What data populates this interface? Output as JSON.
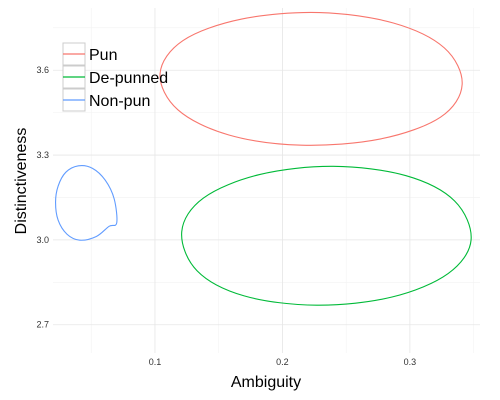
{
  "chart_data": {
    "type": "scatter",
    "title": "",
    "xlabel": "Ambiguity",
    "ylabel": "Distinctiveness",
    "xlim": [
      0.02,
      0.355
    ],
    "ylim": [
      2.6,
      3.82
    ],
    "x_ticks": [
      {
        "value": 0.1,
        "label": "0.1"
      },
      {
        "value": 0.2,
        "label": "0.2"
      },
      {
        "value": 0.3,
        "label": "0.3"
      }
    ],
    "y_ticks": [
      {
        "value": 2.7,
        "label": "2.7"
      },
      {
        "value": 3.0,
        "label": "3.0"
      },
      {
        "value": 3.3,
        "label": "3.3"
      },
      {
        "value": 3.6,
        "label": "3.6"
      }
    ],
    "grid": true,
    "legend_position": "top-left",
    "series": [
      {
        "name": "Pun",
        "color": "#F8766D",
        "ellipse": {
          "points": [
            [
              0.341,
              3.55
            ],
            [
              0.327,
              3.679
            ],
            [
              0.287,
              3.767
            ],
            [
              0.229,
              3.804
            ],
            [
              0.168,
              3.781
            ],
            [
              0.122,
              3.705
            ],
            [
              0.104,
              3.588
            ],
            [
              0.118,
              3.46
            ],
            [
              0.158,
              3.371
            ],
            [
              0.215,
              3.335
            ],
            [
              0.277,
              3.357
            ],
            [
              0.324,
              3.434
            ]
          ]
        }
      },
      {
        "name": "De-punned",
        "color": "#00BA38",
        "ellipse": {
          "points": [
            [
              0.348,
              3.0
            ],
            [
              0.335,
              3.138
            ],
            [
              0.297,
              3.227
            ],
            [
              0.24,
              3.26
            ],
            [
              0.182,
              3.231
            ],
            [
              0.138,
              3.148
            ],
            [
              0.121,
              3.029
            ],
            [
              0.133,
              2.891
            ],
            [
              0.17,
              2.802
            ],
            [
              0.227,
              2.769
            ],
            [
              0.286,
              2.798
            ],
            [
              0.33,
              2.881
            ]
          ]
        }
      },
      {
        "name": "Non-pun",
        "color": "#619CFF",
        "ellipse": {
          "points": [
            [
              0.07,
              3.06
            ],
            [
              0.068,
              3.145
            ],
            [
              0.061,
              3.211
            ],
            [
              0.051,
              3.253
            ],
            [
              0.04,
              3.262
            ],
            [
              0.03,
              3.239
            ],
            [
              0.024,
              3.19
            ],
            [
              0.022,
              3.133
            ],
            [
              0.024,
              3.07
            ],
            [
              0.031,
              3.02
            ],
            [
              0.041,
              2.999
            ],
            [
              0.054,
              3.012
            ],
            [
              0.064,
              3.048
            ]
          ]
        }
      }
    ]
  }
}
